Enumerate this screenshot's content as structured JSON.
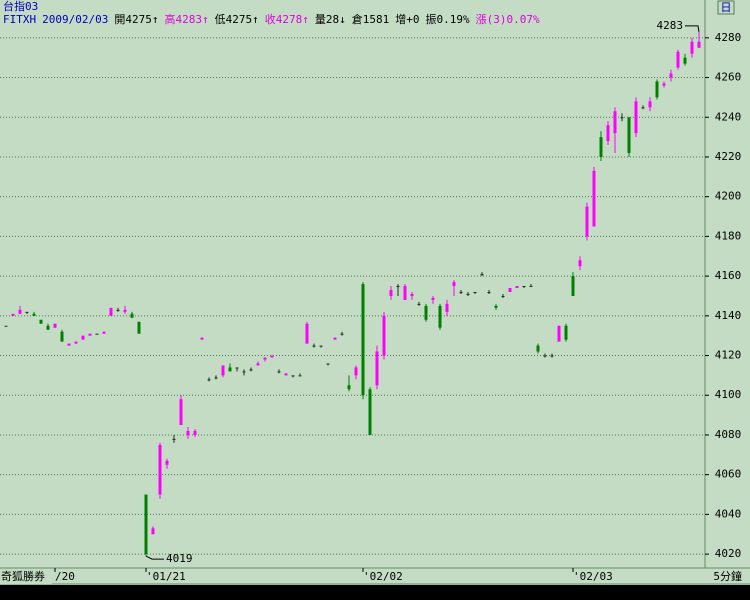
{
  "chart_data": {
    "type": "candlestick",
    "header": {
      "symbol": "台指03",
      "items": [
        {
          "text": "FITXH",
          "color": "#0000c0"
        },
        {
          "text": "2009/02/03",
          "color": "#0000c0"
        },
        {
          "text": "開4275↑",
          "color": "#000000"
        },
        {
          "text": "高4283↑",
          "color": "#e000e0"
        },
        {
          "text": "低4275↑",
          "color": "#000000"
        },
        {
          "text": "收4278↑",
          "color": "#e000e0"
        },
        {
          "text": "量28↓",
          "color": "#000000"
        },
        {
          "text": "倉1581",
          "color": "#000000"
        },
        {
          "text": "增+0",
          "color": "#000000"
        },
        {
          "text": "振0.19%",
          "color": "#000000"
        },
        {
          "text": "漲(3)0.07%",
          "color": "#e000e0"
        }
      ]
    },
    "brand": "奇狐勝券",
    "period": "5分鐘",
    "period_button": "日",
    "annotations": [
      {
        "text": "4283"
      },
      {
        "text": "4019"
      }
    ],
    "up_color": "#ff00ff",
    "down_color": "#008000",
    "flat_color": "#203020",
    "grid": true,
    "ylim": [
      4013,
      4292
    ],
    "yticks": [
      4020,
      4040,
      4060,
      4080,
      4100,
      4120,
      4140,
      4160,
      4180,
      4200,
      4220,
      4240,
      4260,
      4280
    ],
    "categories": [
      null,
      null,
      null,
      null,
      null,
      null,
      null,
      "/20",
      null,
      null,
      null,
      null,
      null,
      null,
      null,
      null,
      null,
      null,
      null,
      null,
      "'01/21",
      null,
      null,
      null,
      null,
      null,
      null,
      null,
      null,
      null,
      null,
      null,
      null,
      null,
      null,
      null,
      null,
      null,
      null,
      null,
      null,
      null,
      null,
      null,
      null,
      null,
      null,
      null,
      null,
      null,
      null,
      "'02/02",
      null,
      null,
      null,
      null,
      null,
      null,
      null,
      null,
      null,
      null,
      null,
      null,
      null,
      null,
      null,
      null,
      null,
      null,
      null,
      null,
      null,
      null,
      null,
      null,
      null,
      null,
      null,
      null,
      null,
      "'02/03",
      null,
      null,
      null,
      null,
      null,
      null,
      null,
      null,
      null,
      null,
      null,
      null,
      null,
      null,
      null,
      null,
      null,
      null
    ],
    "open": [
      4135,
      4140,
      4141,
      4142,
      4141,
      4138,
      4135,
      4134,
      4132,
      4125,
      4126,
      4128,
      4130,
      4131,
      4131,
      4140,
      4143,
      4142,
      4141,
      4137,
      4050,
      4030,
      4050,
      4065,
      4078,
      4085,
      4080,
      4080,
      4128,
      4108,
      4109,
      4110,
      4114,
      4114,
      4112,
      4113,
      4115,
      4118,
      4119,
      4112,
      4110,
      4110,
      4110,
      4126,
      4125,
      4125,
      4116,
      4128,
      4131,
      4105,
      4110,
      4156,
      4103,
      4105,
      4120,
      4150,
      4155,
      4148,
      4150,
      4146,
      4145,
      4148,
      4145,
      4142,
      4155,
      4152,
      4151,
      4152,
      4161,
      4152,
      4145,
      4150,
      4152,
      4154,
      4155,
      4155,
      4125,
      4120,
      4120,
      4127,
      4135,
      4160,
      4165,
      4180,
      4185,
      4230,
      4228,
      4232,
      4240,
      4240,
      4232,
      4245,
      4245,
      4258,
      4256,
      4260,
      4265,
      4270,
      4272,
      4275
    ],
    "high": [
      4135,
      4141,
      4145,
      4142,
      4142,
      4138,
      4136,
      4136,
      4133,
      4126,
      4127,
      4130,
      4131,
      4131,
      4132,
      4144,
      4144,
      4145,
      4142,
      4137,
      4050,
      4034,
      4076,
      4068,
      4080,
      4100,
      4084,
      4083,
      4129,
      4109,
      4110,
      4115,
      4116,
      4114,
      4113,
      4114,
      4117,
      4119,
      4120,
      4113,
      4111,
      4110,
      4111,
      4137,
      4126,
      4125,
      4116,
      4129,
      4132,
      4110,
      4115,
      4157,
      4104,
      4125,
      4142,
      4155,
      4156,
      4156,
      4152,
      4147,
      4146,
      4150,
      4146,
      4148,
      4158,
      4153,
      4152,
      4152,
      4162,
      4153,
      4146,
      4151,
      4154,
      4155,
      4155,
      4156,
      4126,
      4121,
      4121,
      4135,
      4136,
      4162,
      4170,
      4197,
      4215,
      4233,
      4238,
      4245,
      4242,
      4240,
      4250,
      4246,
      4250,
      4259,
      4258,
      4264,
      4274,
      4272,
      4280,
      4283
    ],
    "low": [
      4135,
      4140,
      4141,
      4141,
      4140,
      4136,
      4133,
      4134,
      4127,
      4125,
      4126,
      4128,
      4130,
      4131,
      4131,
      4140,
      4142,
      4141,
      4139,
      4131,
      4019,
      4030,
      4048,
      4063,
      4076,
      4085,
      4078,
      4079,
      4128,
      4107,
      4108,
      4109,
      4112,
      4112,
      4110,
      4112,
      4115,
      4117,
      4119,
      4111,
      4110,
      4109,
      4110,
      4126,
      4124,
      4124,
      4115,
      4128,
      4130,
      4102,
      4108,
      4098,
      4080,
      4103,
      4118,
      4148,
      4150,
      4148,
      4148,
      4145,
      4137,
      4146,
      4133,
      4140,
      4150,
      4151,
      4150,
      4151,
      4160,
      4151,
      4143,
      4149,
      4152,
      4154,
      4154,
      4155,
      4121,
      4119,
      4119,
      4127,
      4127,
      4150,
      4163,
      4178,
      4185,
      4218,
      4226,
      4222,
      4238,
      4220,
      4230,
      4244,
      4243,
      4249,
      4255,
      4258,
      4264,
      4266,
      4270,
      4275
    ],
    "close": [
      4135,
      4141,
      4143,
      4142,
      4140,
      4136,
      4133,
      4136,
      4127,
      4126,
      4127,
      4130,
      4131,
      4131,
      4132,
      4144,
      4143,
      4143,
      4139,
      4131,
      4020,
      4033,
      4075,
      4067,
      4078,
      4098,
      4082,
      4082,
      4129,
      4108,
      4109,
      4115,
      4112,
      4114,
      4112,
      4113,
      4116,
      4119,
      4120,
      4112,
      4111,
      4110,
      4110,
      4136,
      4125,
      4125,
      4116,
      4129,
      4131,
      4103,
      4114,
      4100,
      4080,
      4122,
      4140,
      4153,
      4155,
      4155,
      4151,
      4146,
      4138,
      4149,
      4134,
      4146,
      4157,
      4152,
      4151,
      4152,
      4161,
      4152,
      4144,
      4150,
      4154,
      4155,
      4155,
      4155,
      4122,
      4120,
      4120,
      4135,
      4128,
      4150,
      4168,
      4195,
      4213,
      4220,
      4236,
      4243,
      4240,
      4222,
      4248,
      4245,
      4248,
      4250,
      4257,
      4262,
      4273,
      4267,
      4278,
      4278
    ]
  }
}
